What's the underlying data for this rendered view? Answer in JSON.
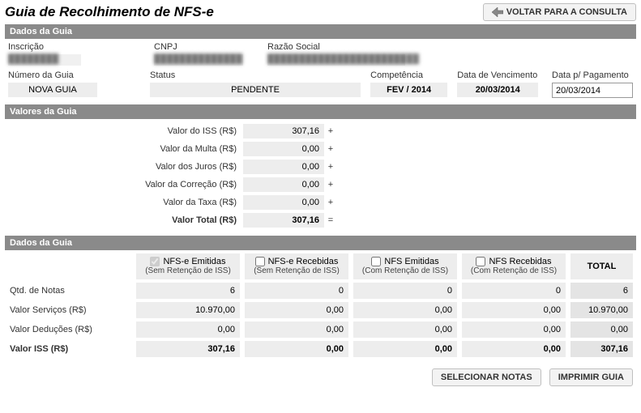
{
  "title": "Guia de Recolhimento de NFS-e",
  "btn_back": "VOLTAR PARA A CONSULTA",
  "section_dados": "Dados da Guia",
  "section_valores": "Valores da Guia",
  "labels": {
    "inscricao": "Inscrição",
    "cnpj": "CNPJ",
    "razao": "Razão Social",
    "numero_guia": "Número da Guia",
    "status": "Status",
    "competencia": "Competência",
    "vencimento": "Data de Vencimento",
    "pagamento": "Data p/ Pagamento"
  },
  "dados": {
    "inscricao": "████████",
    "cnpj": "██████████████",
    "razao": "████████████████████████",
    "numero_guia": "NOVA GUIA",
    "status": "PENDENTE",
    "competencia": "FEV / 2014",
    "vencimento": "20/03/2014",
    "pagamento": "20/03/2014"
  },
  "valores": [
    {
      "label": "Valor do ISS (R$)",
      "value": "307,16",
      "op": "+"
    },
    {
      "label": "Valor da Multa (R$)",
      "value": "0,00",
      "op": "+"
    },
    {
      "label": "Valor dos Juros (R$)",
      "value": "0,00",
      "op": "+"
    },
    {
      "label": "Valor da Correção (R$)",
      "value": "0,00",
      "op": "+"
    },
    {
      "label": "Valor da Taxa (R$)",
      "value": "0,00",
      "op": "+"
    }
  ],
  "valores_total": {
    "label": "Valor Total (R$)",
    "value": "307,16",
    "op": "="
  },
  "matrix": {
    "cols": [
      {
        "title": "NFS-e Emitidas",
        "sub": "(Sem Retenção de ISS)",
        "checked": true
      },
      {
        "title": "NFS-e Recebidas",
        "sub": "(Sem Retenção de ISS)",
        "checked": false
      },
      {
        "title": "NFS Emitidas",
        "sub": "(Com Retenção de ISS)",
        "checked": false
      },
      {
        "title": "NFS Recebidas",
        "sub": "(Com Retenção de ISS)",
        "checked": false
      }
    ],
    "total_label": "TOTAL",
    "rows": [
      {
        "label": "Qtd. de Notas",
        "cells": [
          "6",
          "0",
          "0",
          "0"
        ],
        "total": "6",
        "bold": false
      },
      {
        "label": "Valor Serviços (R$)",
        "cells": [
          "10.970,00",
          "0,00",
          "0,00",
          "0,00"
        ],
        "total": "10.970,00",
        "bold": false
      },
      {
        "label": "Valor Deduções (R$)",
        "cells": [
          "0,00",
          "0,00",
          "0,00",
          "0,00"
        ],
        "total": "0,00",
        "bold": false
      },
      {
        "label": "Valor ISS (R$)",
        "cells": [
          "307,16",
          "0,00",
          "0,00",
          "0,00"
        ],
        "total": "307,16",
        "bold": true
      }
    ]
  },
  "btn_selecionar": "SELECIONAR NOTAS",
  "btn_imprimir": "IMPRIMIR GUIA"
}
